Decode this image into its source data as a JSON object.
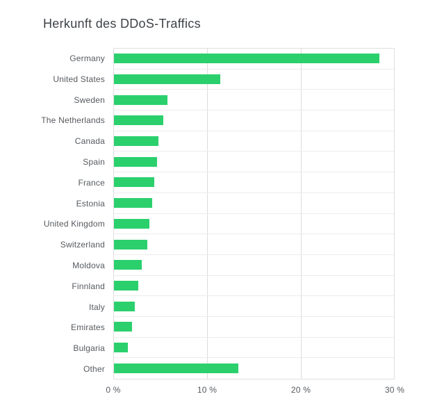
{
  "chart": {
    "title": "Herkunft des DDoS-Traffics"
  },
  "chart_data": {
    "type": "bar",
    "orientation": "horizontal",
    "title": "Herkunft des DDoS-Traffics",
    "categories": [
      "Germany",
      "United States",
      "Sweden",
      "The Netherlands",
      "Canada",
      "Spain",
      "France",
      "Estonia",
      "United Kingdom",
      "Switzerland",
      "Moldova",
      "Finnland",
      "Italy",
      "Emirates",
      "Bulgaria",
      "Other"
    ],
    "values": [
      28.4,
      11.4,
      5.7,
      5.3,
      4.8,
      4.6,
      4.3,
      4.1,
      3.8,
      3.6,
      3.0,
      2.6,
      2.2,
      1.9,
      1.5,
      13.3
    ],
    "unit": "%",
    "xlabel": "",
    "ylabel": "",
    "xlim": [
      0,
      30
    ],
    "x_ticks": [
      "0 %",
      "10 %",
      "20 %",
      "30 %"
    ],
    "x_tick_values": [
      0,
      10,
      20,
      30
    ],
    "grid": true,
    "legend": false,
    "bar_color": "#2bd06d",
    "colors": {
      "title_text": "#3e4247",
      "label_text": "#55595e",
      "gridline": "#dcdcdc",
      "row_line": "#ececec",
      "plot_border": "#e0e0e0",
      "background": "#ffffff"
    }
  }
}
